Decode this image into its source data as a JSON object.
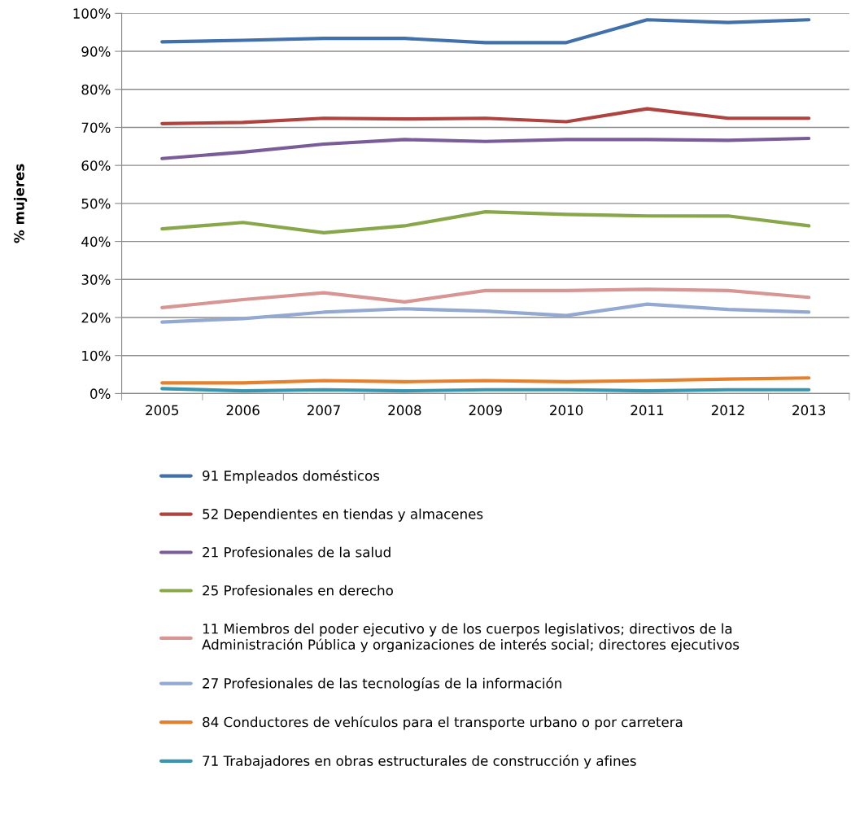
{
  "chart_data": {
    "type": "line",
    "ylabel": "% mujeres",
    "categories": [
      "2005",
      "2006",
      "2007",
      "2008",
      "2009",
      "2010",
      "2011",
      "2012",
      "2013"
    ],
    "ylim": [
      0,
      100
    ],
    "yticks": [
      {
        "value": 0,
        "label": "0%"
      },
      {
        "value": 10,
        "label": "10%"
      },
      {
        "value": 20,
        "label": "20%"
      },
      {
        "value": 30,
        "label": "30%"
      },
      {
        "value": 40,
        "label": "40%"
      },
      {
        "value": 50,
        "label": "50%"
      },
      {
        "value": 60,
        "label": "60%"
      },
      {
        "value": 70,
        "label": "70%"
      },
      {
        "value": 80,
        "label": "80%"
      },
      {
        "value": 90,
        "label": "90%"
      },
      {
        "value": 100,
        "label": "100%"
      }
    ],
    "grid": "y",
    "legend": "bottom",
    "marker": "none",
    "line_style": "solid",
    "series": [
      {
        "name": "91 Empleados domésticos",
        "color": "#4170ab",
        "values": [
          92.5,
          92.9,
          93.4,
          93.4,
          92.3,
          92.3,
          98.3,
          97.6,
          98.3
        ]
      },
      {
        "name": "52 Dependientes en tiendas y almacenes",
        "color": "#ae4340",
        "values": [
          71.0,
          71.3,
          72.4,
          72.2,
          72.4,
          71.5,
          74.9,
          72.4,
          72.4
        ]
      },
      {
        "name": "21 Profesionales de la salud",
        "color": "#7a5c99",
        "values": [
          61.8,
          63.5,
          65.6,
          66.8,
          66.3,
          66.8,
          66.8,
          66.6,
          67.1
        ]
      },
      {
        "name": "25 Profesionales en derecho",
        "color": "#87a74a",
        "values": [
          43.3,
          45.0,
          42.3,
          44.1,
          47.8,
          47.1,
          46.7,
          46.7,
          44.1
        ]
      },
      {
        "name": "11 Miembros del poder ejecutivo y de los cuerpos legislativos; directivos de la\nAdministración Pública y organizaciones de interés social; directores ejecutivos",
        "color": "#d79594",
        "values": [
          22.6,
          24.7,
          26.5,
          24.1,
          27.1,
          27.1,
          27.4,
          27.1,
          25.3
        ]
      },
      {
        "name": "27 Profesionales de las tecnologías de la información",
        "color": "#93a9d2",
        "values": [
          18.8,
          19.7,
          21.4,
          22.3,
          21.7,
          20.5,
          23.5,
          22.1,
          21.4
        ]
      },
      {
        "name": "84 Conductores de vehículos para el transporte urbano o por carretera",
        "color": "#e4812e",
        "values": [
          2.8,
          2.8,
          3.4,
          3.1,
          3.4,
          3.1,
          3.4,
          3.8,
          4.1
        ]
      },
      {
        "name": "71 Trabajadores en obras estructurales de construcción y afines",
        "color": "#3a96ae",
        "values": [
          1.3,
          0.7,
          1.0,
          0.7,
          1.0,
          1.0,
          0.7,
          1.0,
          1.0
        ]
      }
    ]
  }
}
